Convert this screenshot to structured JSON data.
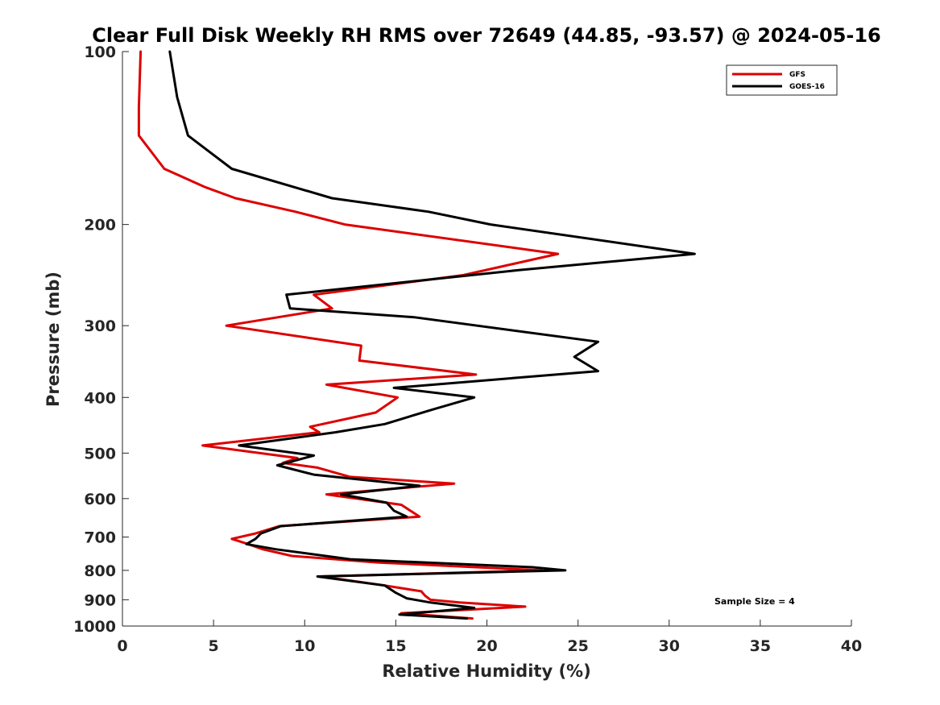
{
  "chart_data": {
    "type": "line",
    "title": "Clear Full Disk Weekly RH RMS over 72649 (44.85, -93.57) @ 2024-05-16",
    "xlabel": "Relative Humidity (%)",
    "ylabel": "Pressure (mb)",
    "xlim": [
      0,
      40
    ],
    "ylim": [
      100,
      1000
    ],
    "y_scale": "log",
    "y_reversed": true,
    "x_ticks": [
      "0",
      "5",
      "10",
      "15",
      "20",
      "25",
      "30",
      "35",
      "40"
    ],
    "y_ticks": [
      "100",
      "200",
      "300",
      "400",
      "500",
      "600",
      "700",
      "800",
      "900",
      "1000"
    ],
    "grid": false,
    "legend_position": "top-right",
    "series": [
      {
        "name": "GFS",
        "color": "#dd0000",
        "points": [
          [
            1.0,
            100
          ],
          [
            0.9,
            125
          ],
          [
            0.9,
            140
          ],
          [
            2.3,
            160
          ],
          [
            4.5,
            172
          ],
          [
            6.2,
            180
          ],
          [
            9.5,
            190
          ],
          [
            12.2,
            200
          ],
          [
            23.9,
            225
          ],
          [
            18.7,
            245
          ],
          [
            10.5,
            265
          ],
          [
            11.5,
            280
          ],
          [
            5.7,
            300
          ],
          [
            13.1,
            325
          ],
          [
            13.0,
            345
          ],
          [
            19.4,
            365
          ],
          [
            11.2,
            380
          ],
          [
            15.1,
            400
          ],
          [
            13.9,
            425
          ],
          [
            10.3,
            450
          ],
          [
            10.8,
            460
          ],
          [
            4.4,
            485
          ],
          [
            9.6,
            510
          ],
          [
            8.8,
            520
          ],
          [
            10.7,
            530
          ],
          [
            12.5,
            550
          ],
          [
            18.2,
            565
          ],
          [
            11.2,
            590
          ],
          [
            15.3,
            615
          ],
          [
            16.3,
            645
          ],
          [
            8.6,
            670
          ],
          [
            7.3,
            690
          ],
          [
            6.0,
            705
          ],
          [
            6.9,
            720
          ],
          [
            7.7,
            735
          ],
          [
            9.3,
            755
          ],
          [
            14.0,
            775
          ],
          [
            23.0,
            800
          ],
          [
            10.9,
            820
          ],
          [
            14.4,
            850
          ],
          [
            16.4,
            870
          ],
          [
            16.6,
            885
          ],
          [
            16.9,
            900
          ],
          [
            18.5,
            910
          ],
          [
            22.1,
            925
          ],
          [
            15.3,
            950
          ],
          [
            19.2,
            970
          ]
        ]
      },
      {
        "name": "GOES-16",
        "color": "#000000",
        "points": [
          [
            2.6,
            100
          ],
          [
            3.0,
            120
          ],
          [
            3.6,
            140
          ],
          [
            6.0,
            160
          ],
          [
            11.5,
            180
          ],
          [
            16.8,
            190
          ],
          [
            20.2,
            200
          ],
          [
            31.4,
            225
          ],
          [
            21.8,
            240
          ],
          [
            9.0,
            265
          ],
          [
            9.2,
            280
          ],
          [
            16.0,
            290
          ],
          [
            26.1,
            320
          ],
          [
            24.8,
            340
          ],
          [
            26.1,
            360
          ],
          [
            14.9,
            385
          ],
          [
            19.3,
            400
          ],
          [
            17.0,
            420
          ],
          [
            14.4,
            445
          ],
          [
            11.7,
            460
          ],
          [
            6.4,
            485
          ],
          [
            10.5,
            505
          ],
          [
            8.5,
            525
          ],
          [
            10.5,
            545
          ],
          [
            16.3,
            570
          ],
          [
            12.0,
            590
          ],
          [
            14.5,
            610
          ],
          [
            14.9,
            630
          ],
          [
            15.6,
            645
          ],
          [
            8.7,
            670
          ],
          [
            7.6,
            690
          ],
          [
            7.3,
            705
          ],
          [
            6.8,
            720
          ],
          [
            8.4,
            735
          ],
          [
            12.5,
            765
          ],
          [
            22.5,
            790
          ],
          [
            24.3,
            800
          ],
          [
            10.7,
            820
          ],
          [
            14.4,
            850
          ],
          [
            15.0,
            875
          ],
          [
            15.6,
            895
          ],
          [
            16.9,
            910
          ],
          [
            19.3,
            930
          ],
          [
            15.2,
            955
          ],
          [
            18.9,
            970
          ]
        ]
      }
    ],
    "annotations": [
      "Sample Size = 4"
    ]
  }
}
